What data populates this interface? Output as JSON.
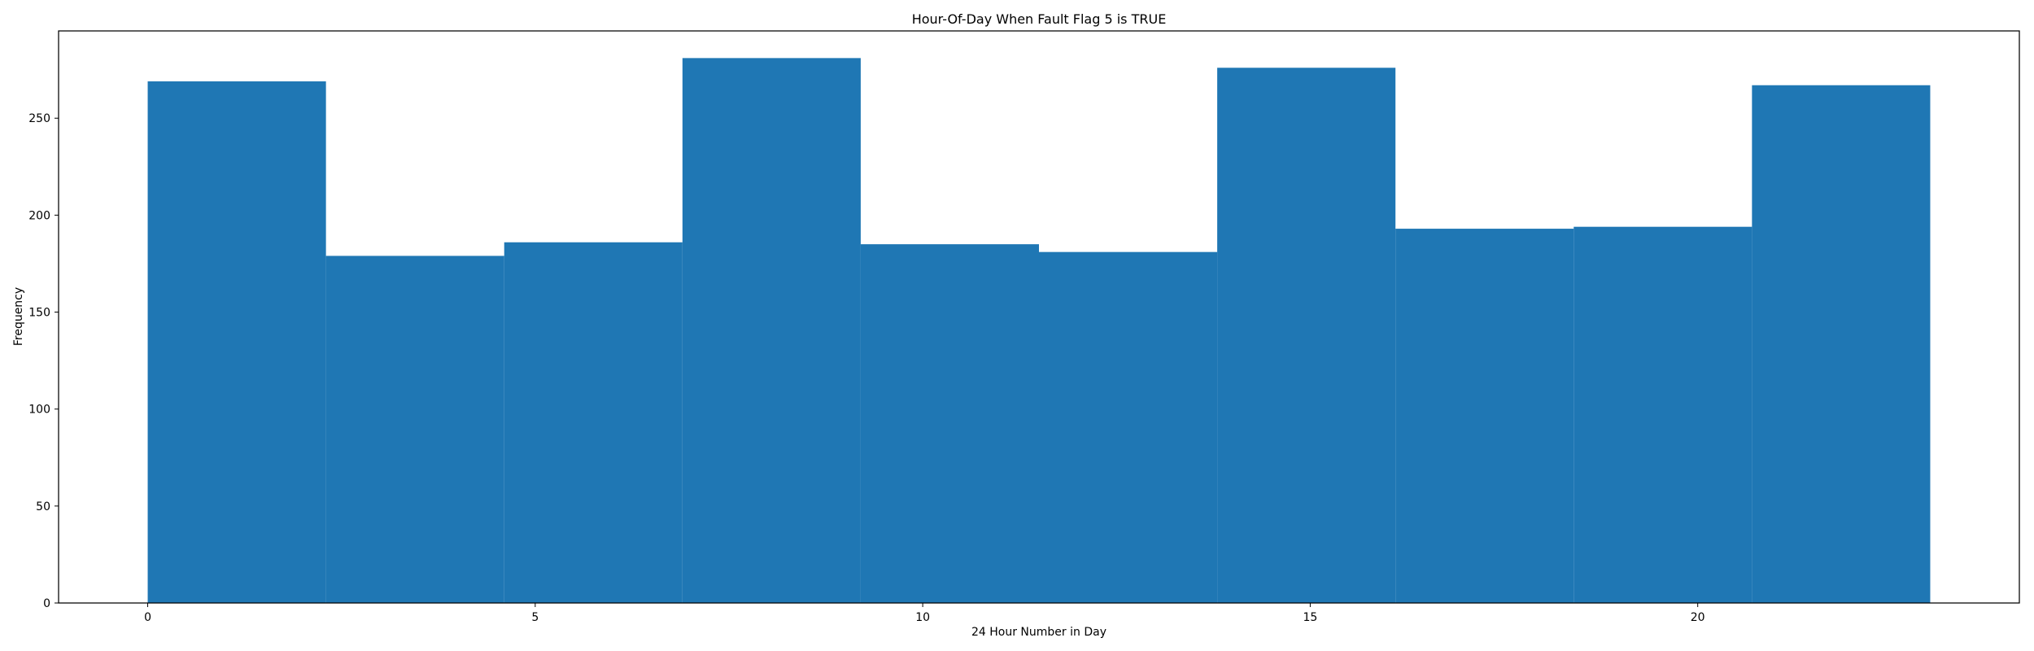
{
  "chart_data": {
    "type": "bar",
    "title": "Hour-Of-Day When Fault Flag 5 is TRUE",
    "xlabel": "24 Hour Number in Day",
    "ylabel": "Frequency",
    "bin_edges": [
      0,
      2.3,
      4.6,
      6.9,
      9.2,
      11.5,
      13.8,
      16.1,
      18.4,
      20.7,
      23
    ],
    "values": [
      269,
      179,
      186,
      281,
      185,
      181,
      276,
      193,
      194,
      267
    ],
    "xlim": [
      -1.15,
      24.15
    ],
    "ylim": [
      0,
      295
    ],
    "xticks": [
      0,
      5,
      10,
      15,
      20
    ],
    "yticks": [
      0,
      50,
      100,
      150,
      200,
      250
    ],
    "bar_color": "#1f77b4",
    "grid": false,
    "legend": "none"
  }
}
